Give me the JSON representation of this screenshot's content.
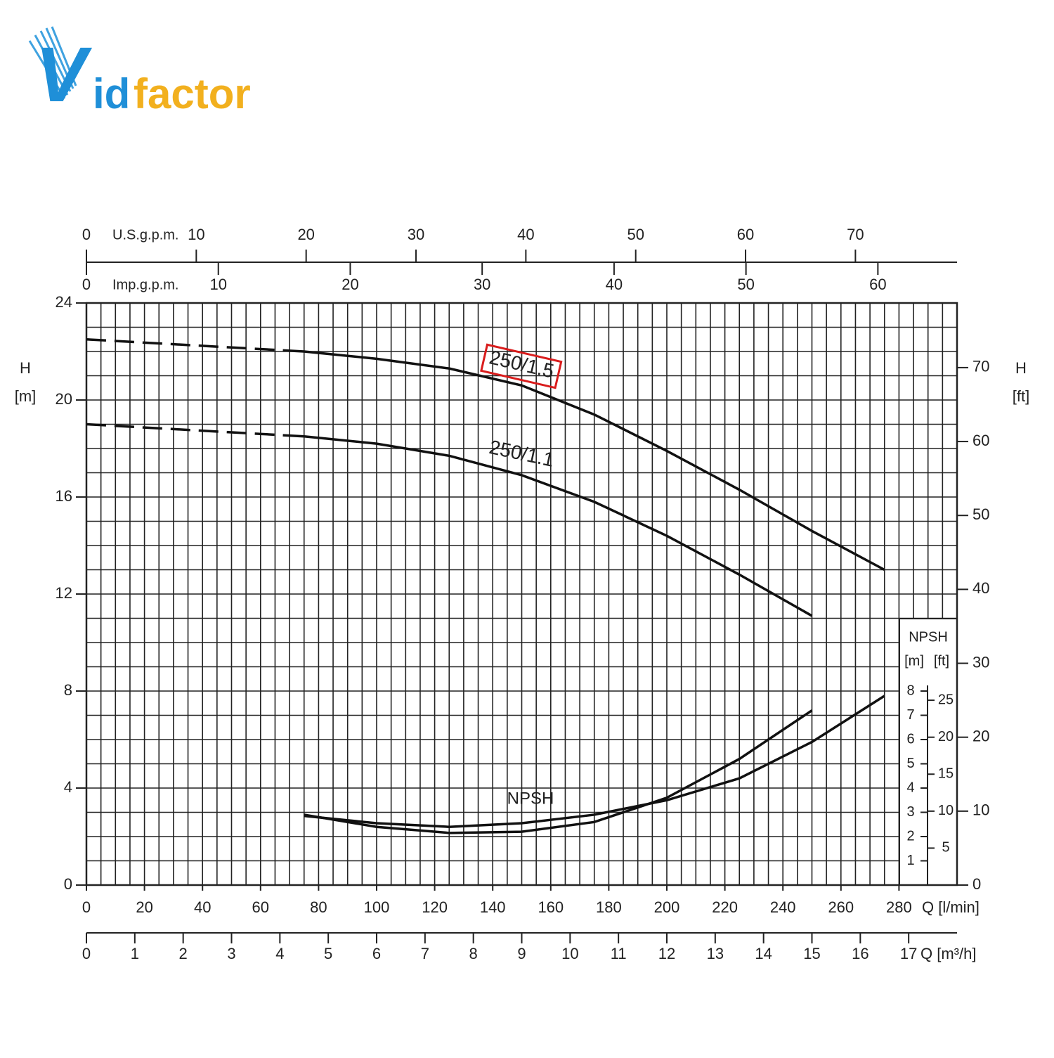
{
  "logo": [
    "V",
    "id",
    "factor"
  ],
  "chart_data": {
    "type": "line",
    "x_label": "Q [l/min]",
    "xlim": [
      0,
      300
    ],
    "xticks": [
      0,
      20,
      40,
      60,
      80,
      100,
      120,
      140,
      160,
      180,
      200,
      220,
      240,
      260,
      280
    ],
    "x2_label": "Q [m³/h]",
    "x2lim": [
      0,
      18
    ],
    "x2ticks": [
      0,
      1,
      2,
      3,
      4,
      5,
      6,
      7,
      8,
      9,
      10,
      11,
      12,
      13,
      14,
      15,
      16,
      17
    ],
    "top_axes": [
      {
        "label": "U.S.g.p.m.",
        "lim": [
          0,
          79.25
        ],
        "ticks": [
          0,
          10,
          20,
          30,
          40,
          50,
          60,
          70
        ]
      },
      {
        "label": "Imp.g.p.m.",
        "lim": [
          0,
          66
        ],
        "ticks": [
          0,
          10,
          20,
          30,
          40,
          50,
          60
        ]
      }
    ],
    "y_label": "H",
    "y_unit": "[m]",
    "ylim": [
      0,
      24
    ],
    "yticks": [
      0,
      4,
      8,
      12,
      16,
      20,
      24
    ],
    "y2_label": "H",
    "y2_unit": "[ft]",
    "y2lim": [
      0,
      78.74
    ],
    "y2ticks": [
      0,
      10,
      20,
      30,
      40,
      50,
      60,
      70
    ],
    "grid": true,
    "grid_step_x": 5,
    "grid_step_y": 1,
    "dashed_below_x": 75,
    "npsh_axis": {
      "title": "NPSH",
      "units": [
        "[m]",
        "[ft]"
      ],
      "ticks": [
        1,
        2,
        3,
        4,
        5,
        6,
        7,
        8
      ],
      "ft_ticks": [
        5,
        10,
        15,
        20,
        25
      ]
    },
    "series": [
      {
        "name": "250/1.5",
        "color": "#111111",
        "highlight": "#d91c1c",
        "x": [
          0,
          75,
          100,
          125,
          150,
          175,
          200,
          225,
          250,
          275
        ],
        "values": [
          22.5,
          22.0,
          21.7,
          21.3,
          20.6,
          19.4,
          17.9,
          16.3,
          14.6,
          13.0
        ]
      },
      {
        "name": "250/1.1",
        "color": "#111111",
        "x": [
          0,
          75,
          100,
          125,
          150,
          175,
          200,
          225,
          250
        ],
        "values": [
          19.0,
          18.5,
          18.2,
          17.7,
          16.9,
          15.8,
          14.4,
          12.8,
          11.1
        ]
      },
      {
        "color": "#111111",
        "x": [
          75,
          100,
          125,
          150,
          175,
          200,
          225,
          250
        ],
        "values": [
          2.9,
          2.4,
          2.15,
          2.2,
          2.6,
          3.6,
          5.2,
          7.2
        ]
      },
      {
        "color": "#111111",
        "x": [
          75,
          100,
          125,
          150,
          175,
          200,
          225,
          250,
          275
        ],
        "values": [
          2.85,
          2.55,
          2.4,
          2.55,
          2.9,
          3.5,
          4.4,
          5.9,
          7.8
        ]
      }
    ],
    "annotations": [
      {
        "text": "NPSH"
      }
    ]
  }
}
